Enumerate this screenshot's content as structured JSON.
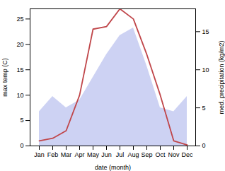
{
  "chart_data": {
    "type": "line",
    "categories": [
      "Jan",
      "Feb",
      "Mar",
      "Apr",
      "May",
      "Jun",
      "Jul",
      "Aug",
      "Sep",
      "Oct",
      "Nov",
      "Dec"
    ],
    "xlabel": "date (month)",
    "ylabel": "max temp (C)",
    "y2label": "med. precipitation (kg/m2)",
    "series": [
      {
        "type": "area",
        "axis": "y2",
        "color": "#b8bfee",
        "values": [
          4.5,
          6.5,
          5.0,
          6.0,
          9.0,
          12.0,
          14.5,
          15.5,
          10.5,
          5.0,
          4.5,
          6.5
        ]
      },
      {
        "type": "line",
        "color": "#c0464a",
        "values": [
          1.0,
          1.5,
          3.0,
          10.0,
          23.0,
          23.5,
          27.0,
          25.0,
          18.0,
          10.0,
          1.0,
          0.2
        ]
      }
    ],
    "ylim": [
      0,
      27
    ],
    "yticks": [
      0,
      5,
      10,
      15,
      20,
      25
    ],
    "y2lim": [
      0,
      18
    ],
    "y2ticks": [
      0,
      5,
      10,
      15
    ],
    "grid": false
  }
}
